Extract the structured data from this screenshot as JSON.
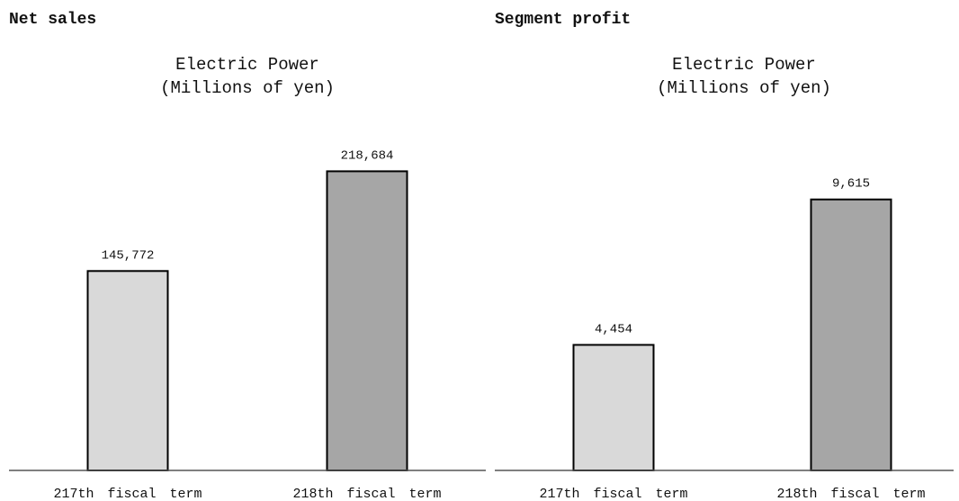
{
  "chart_data": [
    {
      "type": "bar",
      "title": "Net sales",
      "subtitle": [
        "Electric Power",
        "(Millions of yen)"
      ],
      "categories": [
        "217th fiscal term",
        "218th fiscal term"
      ],
      "values": [
        145772,
        218684
      ],
      "value_labels": [
        "145,772",
        "218,684"
      ],
      "colors": [
        "#d9d9d9",
        "#a6a6a6"
      ],
      "ylim": [
        0,
        240000
      ]
    },
    {
      "type": "bar",
      "title": "Segment profit",
      "subtitle": [
        "Electric Power",
        "(Millions of yen)"
      ],
      "categories": [
        "217th fiscal term",
        "218th fiscal term"
      ],
      "values": [
        4454,
        9615
      ],
      "value_labels": [
        "4,454",
        "9,615"
      ],
      "colors": [
        "#d9d9d9",
        "#a6a6a6"
      ],
      "ylim": [
        0,
        10500
      ]
    }
  ]
}
